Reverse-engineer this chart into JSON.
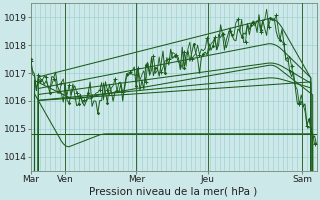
{
  "title": "Pression niveau de la mer( hPa )",
  "bg_color": "#cce8e8",
  "grid_color": "#99cccc",
  "line_color": "#1a5c1a",
  "ylim": [
    1013.5,
    1019.5
  ],
  "yticks": [
    1014,
    1015,
    1016,
    1017,
    1018,
    1019
  ],
  "xtick_labels": [
    "Mar",
    "Ven",
    "Mer",
    "Jeu",
    "Sam"
  ],
  "xtick_positions": [
    0.0,
    0.12,
    0.37,
    0.62,
    0.95
  ],
  "vline_positions": [
    0.12,
    0.37,
    0.62,
    0.95
  ],
  "n_points": 150
}
